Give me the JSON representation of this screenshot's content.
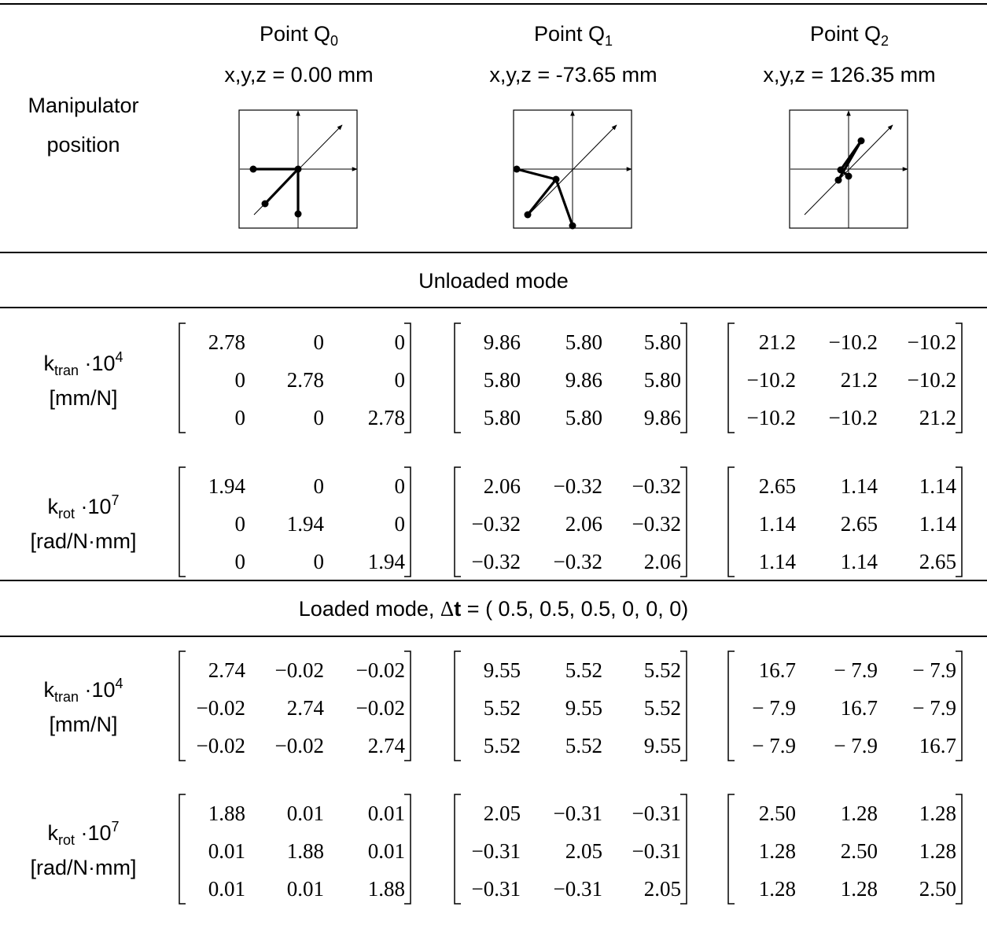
{
  "header": {
    "row_label_line1": "Manipulator",
    "row_label_line2": "position",
    "points": [
      {
        "label": "Point Q",
        "sub": "0",
        "coords": "x,y,z = 0.00 mm"
      },
      {
        "label": "Point Q",
        "sub": "1",
        "coords": "x,y,z = -73.65 mm"
      },
      {
        "label": "Point Q",
        "sub": "2",
        "coords": "x,y,z = 126.35 mm"
      }
    ]
  },
  "sections": [
    {
      "title_pre": "Unloaded mode",
      "title_delta": "",
      "title_bold": "",
      "title_post": "",
      "rows": [
        {
          "label_main": "k",
          "label_sub": "tran",
          "label_mult": " ·10",
          "label_sup": "4",
          "label_unit": "[mm/N]",
          "matrices": [
            [
              [
                "2.78",
                "0",
                "0"
              ],
              [
                "0",
                "2.78",
                "0"
              ],
              [
                "0",
                "0",
                "2.78"
              ]
            ],
            [
              [
                "9.86",
                "5.80",
                "5.80"
              ],
              [
                "5.80",
                "9.86",
                "5.80"
              ],
              [
                "5.80",
                "5.80",
                "9.86"
              ]
            ],
            [
              [
                "21.2",
                "−10.2",
                "−10.2"
              ],
              [
                "−10.2",
                "21.2",
                "−10.2"
              ],
              [
                "−10.2",
                "−10.2",
                "21.2"
              ]
            ]
          ]
        },
        {
          "label_main": "k",
          "label_sub": "rot",
          "label_mult": " ·10",
          "label_sup": "7",
          "label_unit": "[rad/N·mm]",
          "matrices": [
            [
              [
                "1.94",
                "0",
                "0"
              ],
              [
                "0",
                "1.94",
                "0"
              ],
              [
                "0",
                "0",
                "1.94"
              ]
            ],
            [
              [
                "2.06",
                "−0.32",
                "−0.32"
              ],
              [
                "−0.32",
                "2.06",
                "−0.32"
              ],
              [
                "−0.32",
                "−0.32",
                "2.06"
              ]
            ],
            [
              [
                "2.65",
                "1.14",
                "1.14"
              ],
              [
                "1.14",
                "2.65",
                "1.14"
              ],
              [
                "1.14",
                "1.14",
                "2.65"
              ]
            ]
          ]
        }
      ]
    },
    {
      "title_pre": "Loaded mode, ",
      "title_delta": "Δ",
      "title_bold": "t",
      "title_post": " = ( 0.5, 0.5, 0.5, 0, 0, 0)",
      "rows": [
        {
          "label_main": "k",
          "label_sub": "tran",
          "label_mult": " ·10",
          "label_sup": "4",
          "label_unit": "[mm/N]",
          "matrices": [
            [
              [
                "2.74",
                "−0.02",
                "−0.02"
              ],
              [
                "−0.02",
                "2.74",
                "−0.02"
              ],
              [
                "−0.02",
                "−0.02",
                "2.74"
              ]
            ],
            [
              [
                "9.55",
                "5.52",
                "5.52"
              ],
              [
                "5.52",
                "9.55",
                "5.52"
              ],
              [
                "5.52",
                "5.52",
                "9.55"
              ]
            ],
            [
              [
                "16.7",
                "− 7.9",
                "− 7.9"
              ],
              [
                "− 7.9",
                "16.7",
                "− 7.9"
              ],
              [
                "− 7.9",
                "− 7.9",
                "16.7"
              ]
            ]
          ]
        },
        {
          "label_main": "k",
          "label_sub": "rot",
          "label_mult": " ·10",
          "label_sup": "7",
          "label_unit": "[rad/N·mm]",
          "matrices": [
            [
              [
                "1.88",
                "0.01",
                "0.01"
              ],
              [
                "0.01",
                "1.88",
                "0.01"
              ],
              [
                "0.01",
                "0.01",
                "1.88"
              ]
            ],
            [
              [
                "2.05",
                "−0.31",
                "−0.31"
              ],
              [
                "−0.31",
                "2.05",
                "−0.31"
              ],
              [
                "−0.31",
                "−0.31",
                "2.05"
              ]
            ],
            [
              [
                "2.50",
                "1.28",
                "1.28"
              ],
              [
                "1.28",
                "2.50",
                "1.28"
              ],
              [
                "1.28",
                "1.28",
                "2.50"
              ]
            ]
          ]
        }
      ]
    }
  ]
}
